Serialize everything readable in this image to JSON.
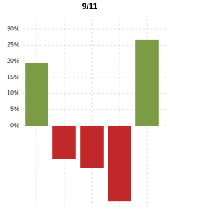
{
  "chart_data": {
    "type": "bar",
    "title": "9/11",
    "categories": [
      null,
      null,
      null,
      null,
      null
    ],
    "values": [
      19.5,
      -10.3,
      -13.1,
      -23.6,
      26.6
    ],
    "colors": [
      "#7b9c45",
      "#c1282a",
      "#c1282a",
      "#c1282a",
      "#7b9c45"
    ],
    "ylim": [
      -25,
      33
    ],
    "yticks": [
      {
        "value": 0,
        "label": "0%"
      },
      {
        "value": 5,
        "label": "5%"
      },
      {
        "value": 10,
        "label": "10%"
      },
      {
        "value": 15,
        "label": "15%"
      },
      {
        "value": 20,
        "label": "20%"
      },
      {
        "value": 25,
        "label": "25%"
      },
      {
        "value": 30,
        "label": "30%"
      }
    ],
    "grid": true
  }
}
